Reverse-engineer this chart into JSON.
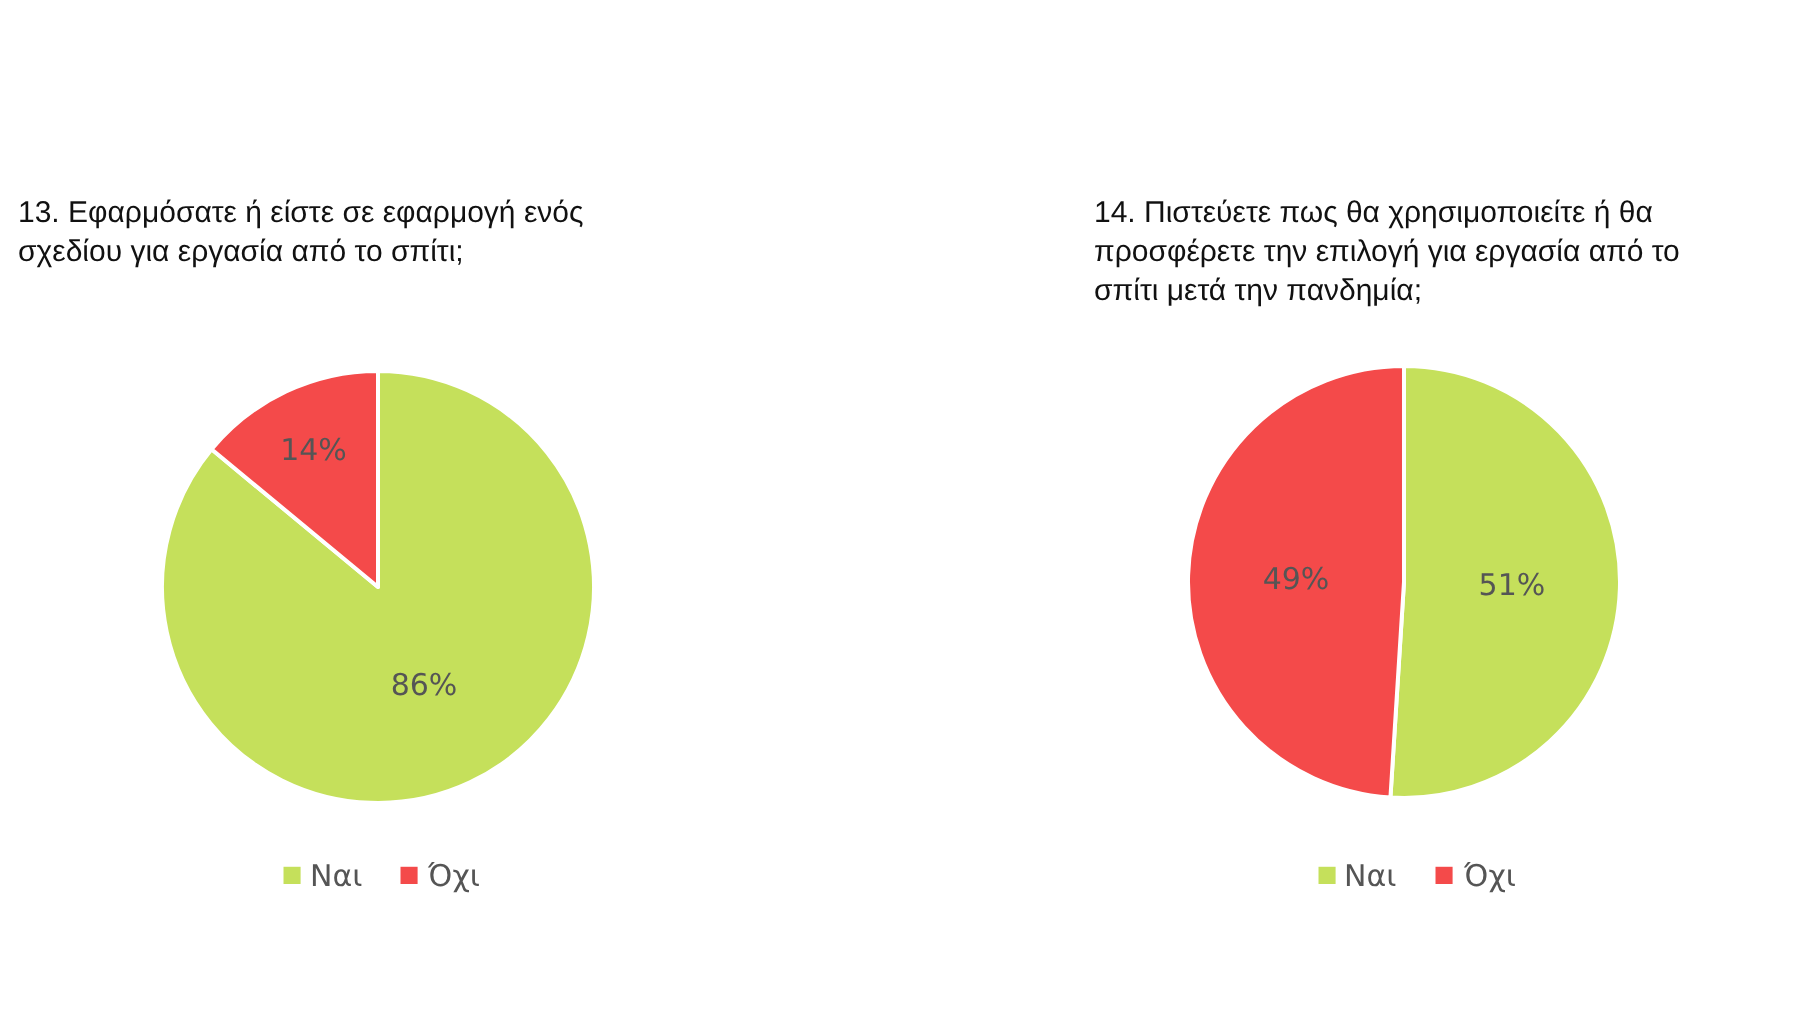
{
  "chart_data": [
    {
      "type": "pie",
      "title": "13. Εφαρμόσατε ή είστε σε εφαρμογή ενός σχεδίου για εργασία από το σπίτι;",
      "categories": [
        "Ναι",
        "Όχι"
      ],
      "values": [
        86,
        14
      ],
      "colors": [
        "#c5e05b",
        "#f44a4a"
      ],
      "value_labels": [
        "86%",
        "14%"
      ],
      "legend": "bottom"
    },
    {
      "type": "pie",
      "title": "14. Πιστεύετε πως θα χρησιμοποιείτε ή θα προσφέρετε την επιλογή για εργασία από το σπίτι μετά την πανδημία;",
      "categories": [
        "Ναι",
        "Όχι"
      ],
      "values": [
        51,
        49
      ],
      "colors": [
        "#c5e05b",
        "#f44a4a"
      ],
      "value_labels": [
        "51%",
        "49%"
      ],
      "legend": "bottom"
    }
  ]
}
